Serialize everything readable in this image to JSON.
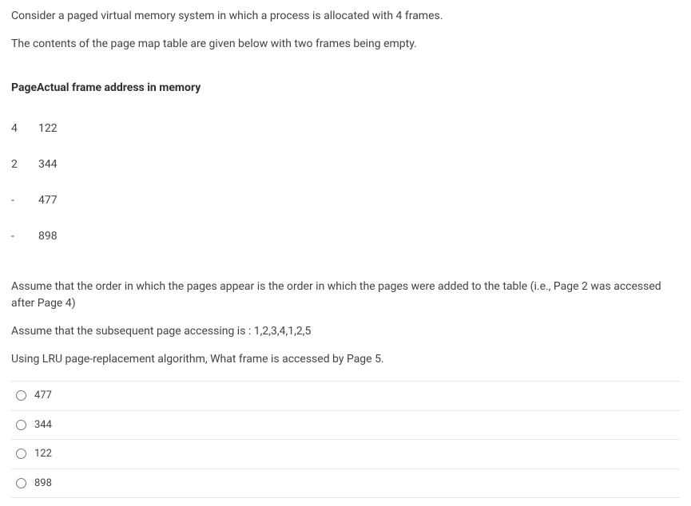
{
  "question": {
    "line1": "Consider a paged virtual memory system in which a process is allocated with 4 frames.",
    "line2": "The contents of the page map table are given below with two frames being empty."
  },
  "table": {
    "header_col1": "Page",
    "header_col2": "Actual frame address in memory",
    "rows": [
      {
        "page": "4",
        "addr": "122"
      },
      {
        "page": "2",
        "addr": "344"
      },
      {
        "page": "-",
        "addr": "477"
      },
      {
        "page": "-",
        "addr": "898"
      }
    ]
  },
  "assume": {
    "line1": "Assume that the order in which the pages appear is the order in which the pages were added to the table (i.e., Page 2 was accessed after Page 4)",
    "line2": "Assume that the subsequent page accessing is : 1,2,3,4,1,2,5",
    "line3": "Using LRU page-replacement algorithm, What frame is accessed by Page 5."
  },
  "options": [
    {
      "label": "477"
    },
    {
      "label": "344"
    },
    {
      "label": "122"
    },
    {
      "label": "898"
    }
  ]
}
